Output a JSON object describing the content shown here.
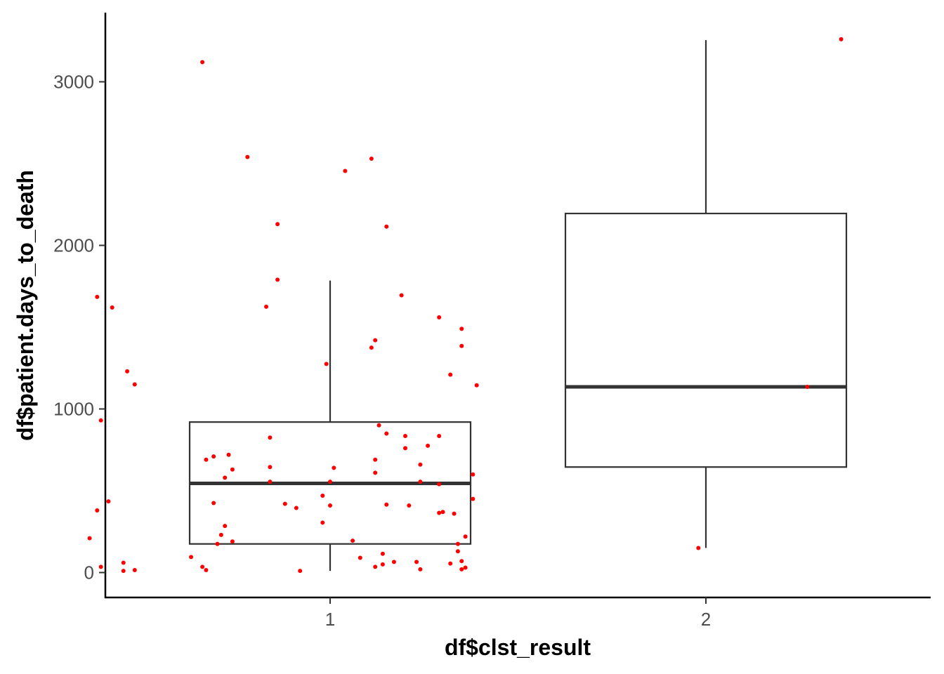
{
  "chart_data": {
    "type": "boxplot",
    "xlabel": "df$clst_result",
    "ylabel": "df$patient.days_to_death",
    "categories": [
      "1",
      "2"
    ],
    "ylim": [
      -150,
      3420
    ],
    "yticks": [
      0,
      1000,
      2000,
      3000
    ],
    "grid": false,
    "colors": {
      "box_line": "#333333",
      "points": "#ff0000",
      "axis": "#000000"
    },
    "boxes": [
      {
        "category": "1",
        "whisker_low": 10,
        "q1": 175,
        "median": 545,
        "q3": 920,
        "whisker_high": 1785
      },
      {
        "category": "2",
        "whisker_low": 150,
        "q1": 645,
        "median": 1135,
        "q3": 2195,
        "whisker_high": 3255
      }
    ],
    "points": [
      {
        "x": 0.66,
        "y": 3120
      },
      {
        "x": 0.78,
        "y": 2540
      },
      {
        "x": 1.04,
        "y": 2455
      },
      {
        "x": 1.11,
        "y": 2530
      },
      {
        "x": 0.86,
        "y": 2130
      },
      {
        "x": 1.15,
        "y": 2115
      },
      {
        "x": 0.86,
        "y": 1790
      },
      {
        "x": 1.19,
        "y": 1695
      },
      {
        "x": 0.38,
        "y": 1685
      },
      {
        "x": 0.42,
        "y": 1620
      },
      {
        "x": 0.83,
        "y": 1625
      },
      {
        "x": 1.29,
        "y": 1560
      },
      {
        "x": 1.35,
        "y": 1490
      },
      {
        "x": 1.12,
        "y": 1420
      },
      {
        "x": 1.11,
        "y": 1375
      },
      {
        "x": 1.35,
        "y": 1385
      },
      {
        "x": 0.99,
        "y": 1275
      },
      {
        "x": 0.46,
        "y": 1230
      },
      {
        "x": 1.32,
        "y": 1210
      },
      {
        "x": 0.48,
        "y": 1150
      },
      {
        "x": 1.39,
        "y": 1145
      },
      {
        "x": 0.39,
        "y": 930
      },
      {
        "x": 1.13,
        "y": 900
      },
      {
        "x": 0.84,
        "y": 825
      },
      {
        "x": 1.15,
        "y": 850
      },
      {
        "x": 1.2,
        "y": 835
      },
      {
        "x": 1.29,
        "y": 835
      },
      {
        "x": 1.26,
        "y": 775
      },
      {
        "x": 1.2,
        "y": 760
      },
      {
        "x": 0.73,
        "y": 720
      },
      {
        "x": 0.69,
        "y": 710
      },
      {
        "x": 0.67,
        "y": 690
      },
      {
        "x": 1.12,
        "y": 690
      },
      {
        "x": 1.24,
        "y": 660
      },
      {
        "x": 0.84,
        "y": 645
      },
      {
        "x": 1.01,
        "y": 640
      },
      {
        "x": 0.74,
        "y": 630
      },
      {
        "x": 1.12,
        "y": 610
      },
      {
        "x": 1.38,
        "y": 600
      },
      {
        "x": 0.72,
        "y": 580
      },
      {
        "x": 1.24,
        "y": 555
      },
      {
        "x": 0.84,
        "y": 555
      },
      {
        "x": 1.0,
        "y": 555
      },
      {
        "x": 1.29,
        "y": 540
      },
      {
        "x": 0.41,
        "y": 435
      },
      {
        "x": 0.98,
        "y": 470
      },
      {
        "x": 1.38,
        "y": 450
      },
      {
        "x": 0.69,
        "y": 425
      },
      {
        "x": 0.88,
        "y": 420
      },
      {
        "x": 1.15,
        "y": 415
      },
      {
        "x": 1.21,
        "y": 410
      },
      {
        "x": 1.0,
        "y": 410
      },
      {
        "x": 0.91,
        "y": 395
      },
      {
        "x": 0.38,
        "y": 380
      },
      {
        "x": 1.3,
        "y": 370
      },
      {
        "x": 1.29,
        "y": 365
      },
      {
        "x": 1.33,
        "y": 360
      },
      {
        "x": 0.98,
        "y": 305
      },
      {
        "x": 0.72,
        "y": 285
      },
      {
        "x": 0.71,
        "y": 230
      },
      {
        "x": 0.36,
        "y": 210
      },
      {
        "x": 1.36,
        "y": 220
      },
      {
        "x": 1.06,
        "y": 195
      },
      {
        "x": 0.74,
        "y": 190
      },
      {
        "x": 0.7,
        "y": 175
      },
      {
        "x": 1.34,
        "y": 175
      },
      {
        "x": 1.34,
        "y": 130
      },
      {
        "x": 1.14,
        "y": 115
      },
      {
        "x": 0.63,
        "y": 95
      },
      {
        "x": 1.08,
        "y": 90
      },
      {
        "x": 1.35,
        "y": 70
      },
      {
        "x": 1.23,
        "y": 65
      },
      {
        "x": 1.17,
        "y": 65
      },
      {
        "x": 0.45,
        "y": 60
      },
      {
        "x": 1.32,
        "y": 55
      },
      {
        "x": 1.14,
        "y": 50
      },
      {
        "x": 0.39,
        "y": 35
      },
      {
        "x": 0.66,
        "y": 35
      },
      {
        "x": 1.12,
        "y": 35
      },
      {
        "x": 1.36,
        "y": 30
      },
      {
        "x": 1.35,
        "y": 20
      },
      {
        "x": 1.24,
        "y": 20
      },
      {
        "x": 0.67,
        "y": 15
      },
      {
        "x": 0.48,
        "y": 15
      },
      {
        "x": 0.45,
        "y": 10
      },
      {
        "x": 0.92,
        "y": 10
      },
      {
        "x": 2.36,
        "y": 3260
      },
      {
        "x": 2.27,
        "y": 1135
      },
      {
        "x": 1.98,
        "y": 150
      }
    ]
  }
}
